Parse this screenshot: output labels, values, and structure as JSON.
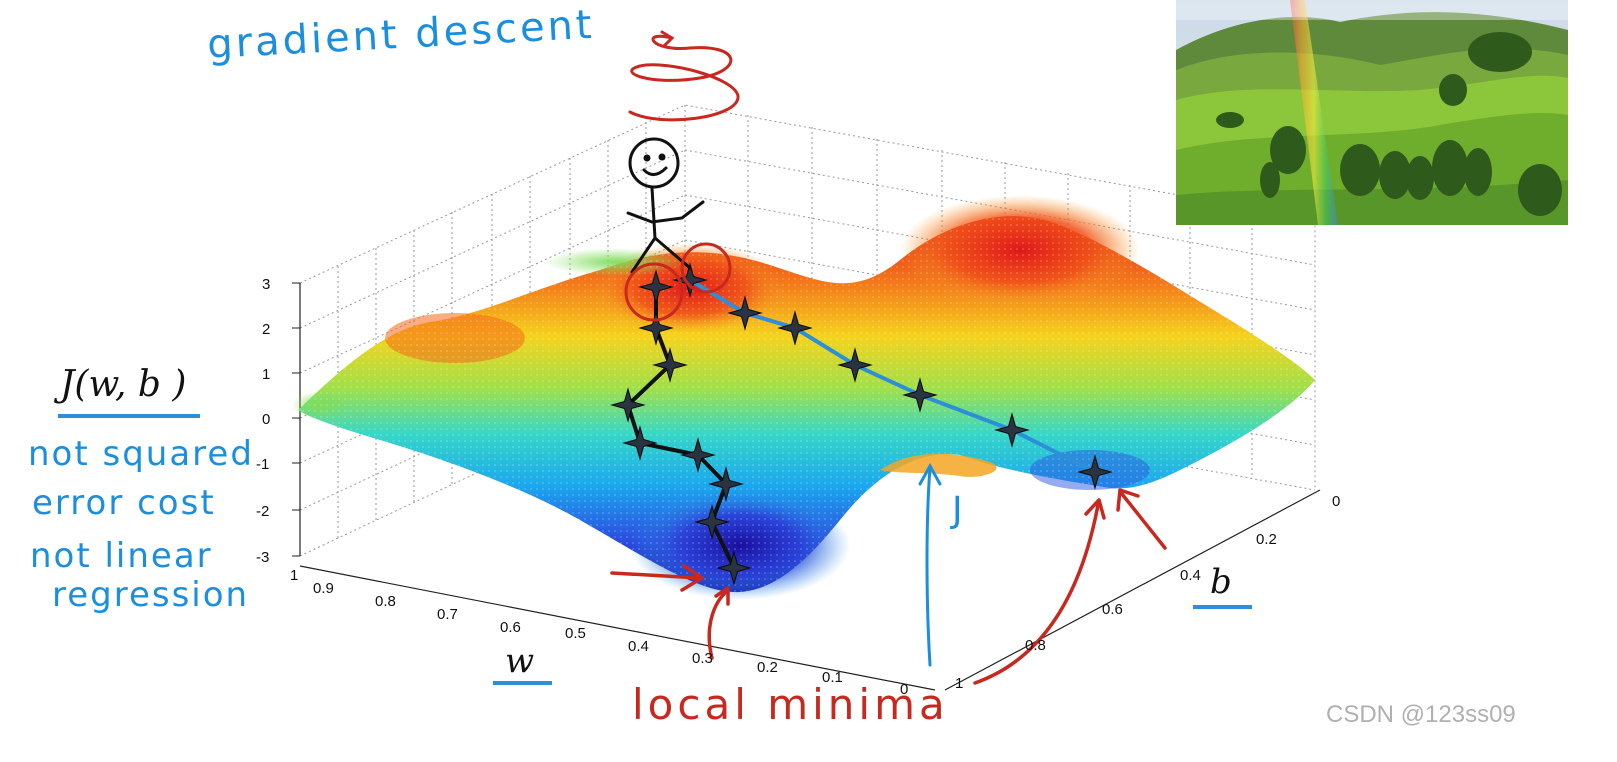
{
  "annotations": {
    "title": "gradient descent",
    "cost_label": "J(w, b )",
    "note_line1": "not squared",
    "note_line2": "error cost",
    "note_line3": "not linear",
    "note_line4": "regression",
    "local_minima": "local minima",
    "j_label": "J"
  },
  "axes": {
    "w_label": "w",
    "b_label": "b",
    "z_ticks": [
      "3",
      "2",
      "1",
      "0",
      "-1",
      "-2",
      "-3"
    ],
    "w_ticks": [
      "1",
      "0.9",
      "0.8",
      "0.7",
      "0.6",
      "0.5",
      "0.4",
      "0.3",
      "0.2",
      "0.1",
      "0"
    ],
    "b_ticks": [
      "0",
      "0.2",
      "0.4",
      "0.6",
      "0.8",
      "1"
    ]
  },
  "watermark": "CSDN @123ss09",
  "colors": {
    "ink_blue": "#1a8fe0",
    "ink_red": "#c8281e",
    "path_blue": "#2c8fd8",
    "path_black": "#111111"
  },
  "inset_photo": {
    "icon": "landscape-rainbow-photo"
  }
}
